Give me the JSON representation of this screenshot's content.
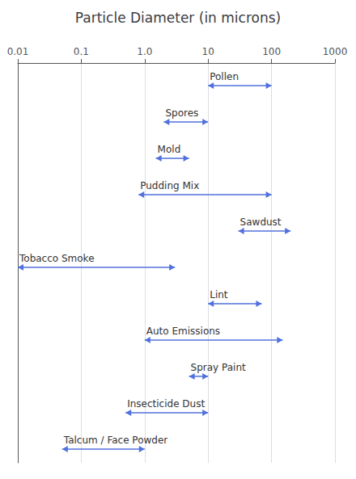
{
  "chart_data": {
    "type": "range",
    "title": "Particle Diameter (in microns)",
    "categories": [
      "Pollen",
      "Spores",
      "Mold",
      "Pudding Mix",
      "Sawdust",
      "Tobacco Smoke",
      "Lint",
      "Auto Emissions",
      "Spray Paint",
      "Insecticide Dust",
      "Talcum / Face Powder"
    ],
    "values": [
      [
        10,
        100
      ],
      [
        2,
        10
      ],
      [
        1.5,
        5
      ],
      [
        0.8,
        100
      ],
      [
        30,
        200
      ],
      [
        0.01,
        3
      ],
      [
        10,
        70
      ],
      [
        1.0,
        150
      ],
      [
        5,
        10
      ],
      [
        0.5,
        10
      ],
      [
        0.05,
        1.0
      ]
    ],
    "log": "x",
    "xlim": [
      0.01,
      1000
    ],
    "xticks": [
      0.01,
      0.1,
      {
        "value": 1,
        "label": "1.0"
      },
      10,
      100,
      1000
    ],
    "grid": true,
    "tick_labels": "x"
  }
}
